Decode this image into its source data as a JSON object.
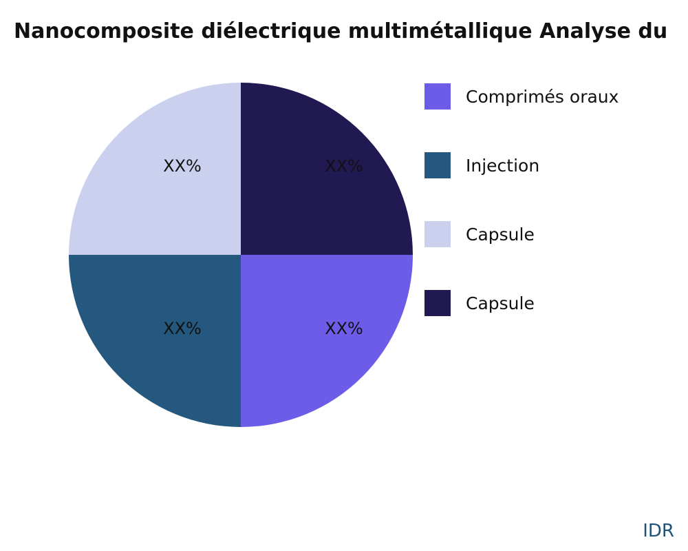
{
  "title": "Nanocomposite diélectrique multimétallique Analyse du",
  "watermark": "IDR",
  "chart_data": {
    "type": "pie",
    "title": "Nanocomposite diélectrique multimétallique Analyse du",
    "slices": [
      {
        "label": "Comprimés oraux",
        "value": 25,
        "display": "XX%",
        "color": "#6D5CE7"
      },
      {
        "label": "Injection",
        "value": 25,
        "display": "XX%",
        "color": "#24587E"
      },
      {
        "label": "Capsule",
        "value": 25,
        "display": "XX%",
        "color": "#CBD0EF"
      },
      {
        "label": "Capsule",
        "value": 25,
        "display": "XX%",
        "color": "#211A52"
      }
    ],
    "legend_position": "right",
    "start_angle_deg": 0,
    "direction": "clockwise",
    "slice_order_clockwise_from_top": [
      3,
      0,
      1,
      2
    ]
  }
}
